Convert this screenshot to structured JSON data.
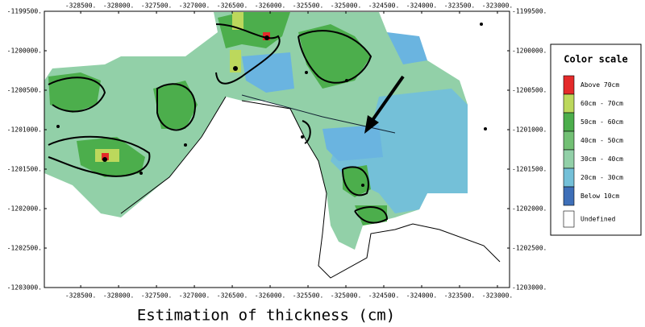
{
  "chart_data": {
    "type": "map",
    "title": "Estimation of thickness (cm)",
    "xlim": [
      -328980,
      -322840
    ],
    "ylim": [
      -1203000,
      -1199500
    ],
    "xticks": [
      {
        "value": -328500,
        "label": "-328500."
      },
      {
        "value": -328000,
        "label": "-328000."
      },
      {
        "value": -327500,
        "label": "-327500."
      },
      {
        "value": -327000,
        "label": "-327000."
      },
      {
        "value": -326500,
        "label": "-326500."
      },
      {
        "value": -326000,
        "label": "-326000."
      },
      {
        "value": -325500,
        "label": "-325500."
      },
      {
        "value": -325000,
        "label": "-325000."
      },
      {
        "value": -324500,
        "label": "-324500."
      },
      {
        "value": -324000,
        "label": "-324000."
      },
      {
        "value": -323500,
        "label": "-323500."
      },
      {
        "value": -323000,
        "label": "-323000."
      }
    ],
    "yticks": [
      {
        "value": -1199500,
        "label": "-1199500."
      },
      {
        "value": -1200000,
        "label": "-1200000."
      },
      {
        "value": -1200500,
        "label": "-1200500."
      },
      {
        "value": -1201000,
        "label": "-1201000."
      },
      {
        "value": -1201500,
        "label": "-1201500."
      },
      {
        "value": -1202000,
        "label": "-1202000."
      },
      {
        "value": -1202500,
        "label": "-1202500."
      },
      {
        "value": -1203000,
        "label": "-1203000."
      }
    ],
    "legend": {
      "title": "Color scale",
      "items": [
        {
          "label": "Above 70cm",
          "color": "#e42a2a"
        },
        {
          "label": "60cm - 70cm",
          "color": "#bcd85c"
        },
        {
          "label": "50cm - 60cm",
          "color": "#4cae4c"
        },
        {
          "label": "40cm - 50cm",
          "color": "#72c074"
        },
        {
          "label": "30cm - 40cm",
          "color": "#92d0a8"
        },
        {
          "label": "20cm - 30cm",
          "color": "#74c0d8"
        },
        {
          "label": "Below 10cm",
          "color": "#3e6fb8"
        },
        {
          "label": "Undefined",
          "color": "#ffffff"
        }
      ]
    }
  }
}
